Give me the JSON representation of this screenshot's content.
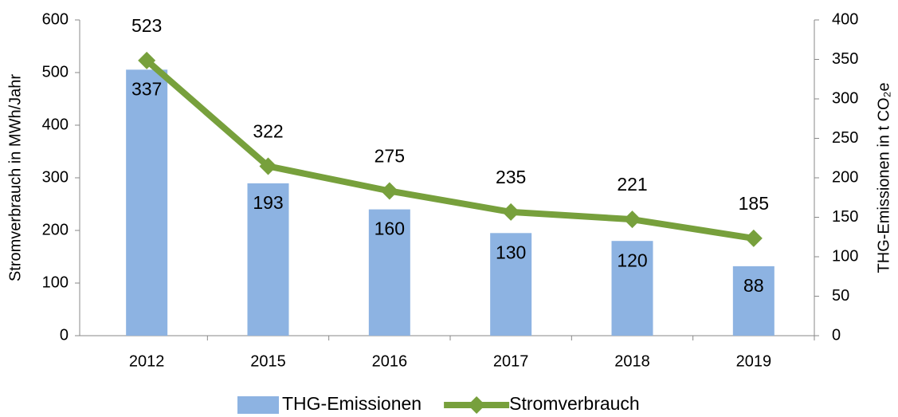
{
  "chart_data": {
    "type": "bar-line",
    "categories": [
      "2012",
      "2015",
      "2016",
      "2017",
      "2018",
      "2019"
    ],
    "series": [
      {
        "name": "THG-Emissionen",
        "type": "bar",
        "axis": "y2",
        "color": "#8db3e2",
        "values": [
          337,
          193,
          160,
          130,
          120,
          88
        ]
      },
      {
        "name": "Stromverbrauch",
        "type": "line",
        "axis": "y",
        "color": "#77a03c",
        "values": [
          523,
          322,
          275,
          235,
          221,
          185
        ]
      }
    ],
    "ylabel": "Stromverbrauch in MWh/Jahr",
    "y2label": "THG-Emissionen in t CO₂e",
    "ylim": [
      0,
      600
    ],
    "yticks": [
      0,
      100,
      200,
      300,
      400,
      500,
      600
    ],
    "y2lim": [
      0,
      400
    ],
    "y2ticks": [
      0,
      50,
      100,
      150,
      200,
      250,
      300,
      350,
      400
    ],
    "legend": "bottom"
  }
}
